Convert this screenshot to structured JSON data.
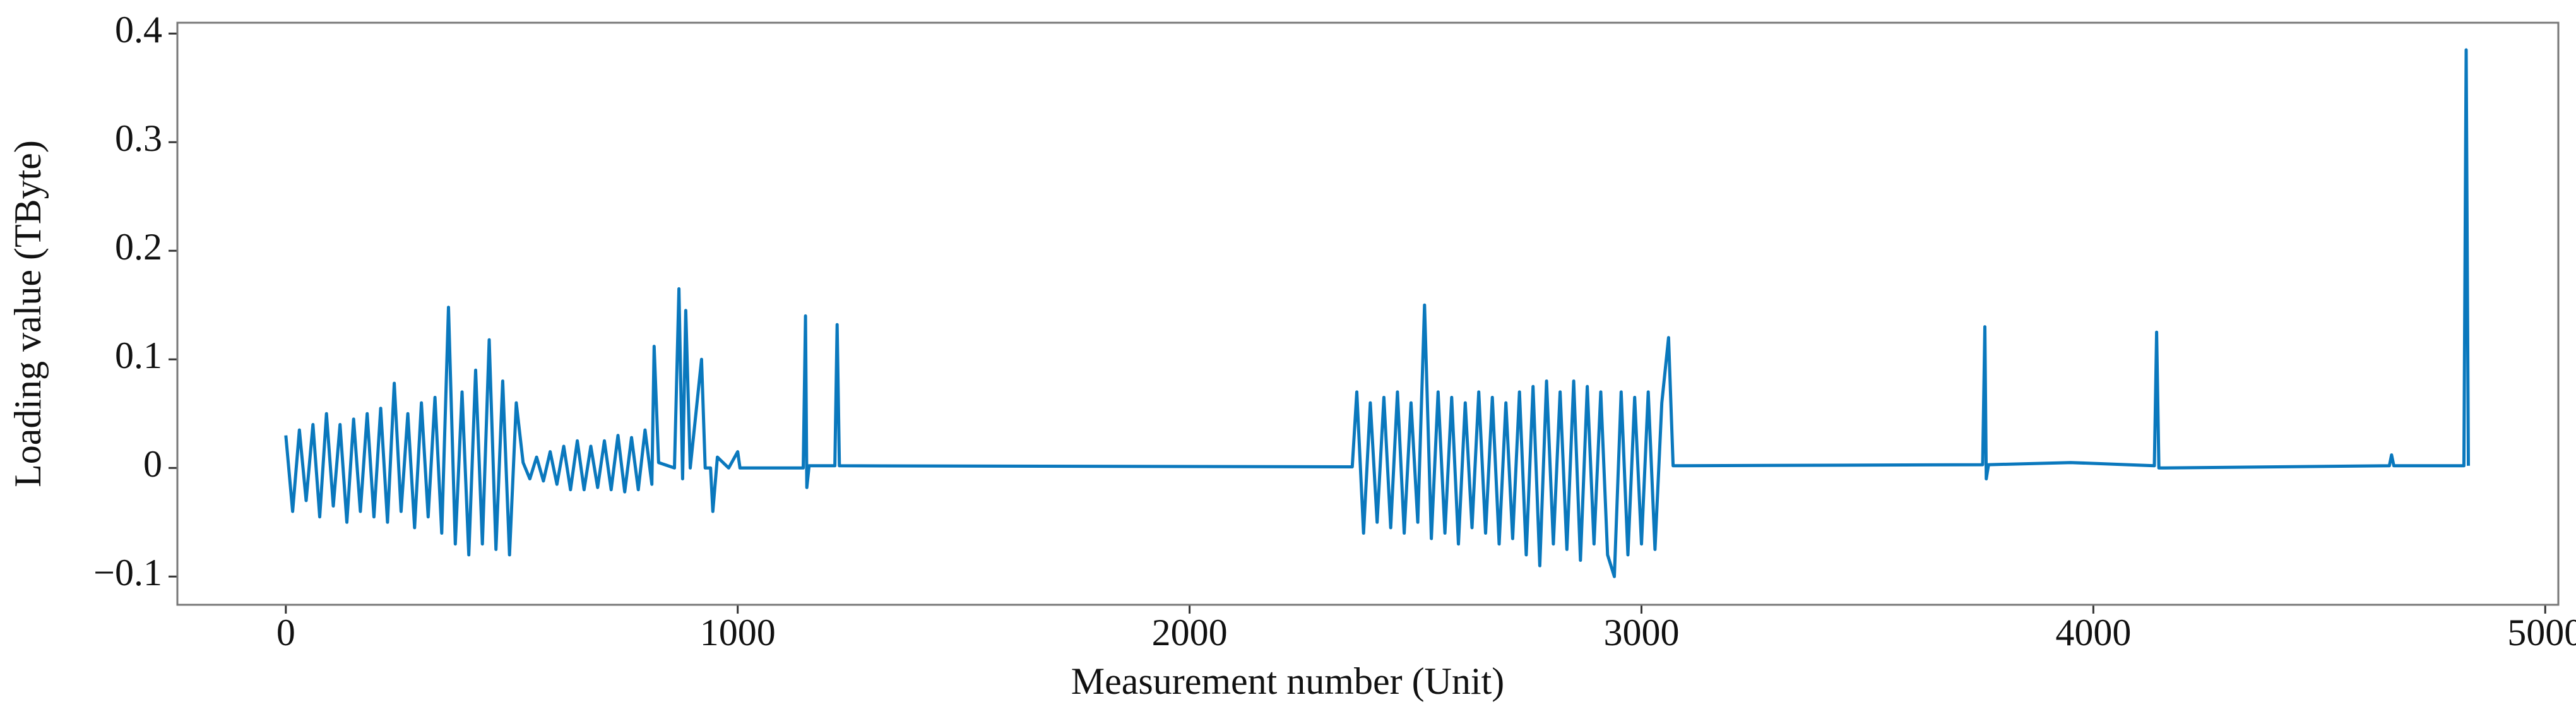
{
  "chart_data": {
    "type": "line",
    "x_label": "Measurement number (Unit)",
    "y_label": "Loading value (TByte)",
    "color": "#0a78bd",
    "xlim": [
      -240,
      5029
    ],
    "ylim": [
      -0.126,
      0.41
    ],
    "xticks": [
      0,
      1000,
      2000,
      3000,
      4000,
      5000
    ],
    "yticks": [
      {
        "value": -0.1,
        "label": "−0.1"
      },
      0,
      0.1,
      0.2,
      0.3,
      0.4
    ],
    "x": [
      0,
      15,
      30,
      45,
      60,
      75,
      90,
      105,
      120,
      135,
      150,
      165,
      180,
      195,
      210,
      225,
      240,
      255,
      270,
      285,
      300,
      315,
      330,
      345,
      360,
      375,
      390,
      405,
      420,
      435,
      450,
      465,
      480,
      495,
      510,
      525,
      540,
      555,
      570,
      585,
      600,
      615,
      630,
      645,
      660,
      675,
      690,
      705,
      720,
      735,
      750,
      765,
      780,
      795,
      810,
      815,
      825,
      860,
      870,
      878,
      885,
      895,
      920,
      928,
      940,
      945,
      955,
      980,
      1000,
      1005,
      1145,
      1150,
      1153,
      1158,
      1215,
      1220,
      1225,
      2360,
      2370,
      2385,
      2400,
      2415,
      2430,
      2445,
      2460,
      2475,
      2490,
      2505,
      2520,
      2535,
      2550,
      2565,
      2580,
      2595,
      2610,
      2625,
      2640,
      2655,
      2670,
      2685,
      2700,
      2715,
      2730,
      2745,
      2760,
      2775,
      2790,
      2805,
      2820,
      2835,
      2850,
      2865,
      2880,
      2895,
      2910,
      2925,
      2940,
      2955,
      2970,
      2985,
      3000,
      3015,
      3030,
      3045,
      3060,
      3070,
      3755,
      3760,
      3763,
      3768,
      3950,
      4135,
      4140,
      4145,
      4655,
      4660,
      4665,
      4820,
      4825,
      4830
    ],
    "values": [
      0.03,
      -0.04,
      0.035,
      -0.03,
      0.04,
      -0.045,
      0.05,
      -0.035,
      0.04,
      -0.05,
      0.045,
      -0.04,
      0.05,
      -0.045,
      0.055,
      -0.05,
      0.078,
      -0.04,
      0.05,
      -0.055,
      0.06,
      -0.045,
      0.065,
      -0.06,
      0.148,
      -0.07,
      0.07,
      -0.08,
      0.09,
      -0.07,
      0.118,
      -0.075,
      0.08,
      -0.08,
      0.06,
      0.005,
      -0.01,
      0.01,
      -0.012,
      0.015,
      -0.015,
      0.02,
      -0.02,
      0.025,
      -0.02,
      0.02,
      -0.018,
      0.025,
      -0.02,
      0.03,
      -0.022,
      0.028,
      -0.02,
      0.035,
      -0.015,
      0.112,
      0.005,
      0,
      0.165,
      -0.01,
      0.145,
      0,
      0.1,
      0,
      0,
      -0.04,
      0.01,
      0,
      0.015,
      0,
      0,
      0.14,
      -0.018,
      0.002,
      0.002,
      0.132,
      0.002,
      0.001,
      0.07,
      -0.06,
      0.06,
      -0.05,
      0.065,
      -0.055,
      0.07,
      -0.06,
      0.06,
      -0.05,
      0.15,
      -0.065,
      0.07,
      -0.06,
      0.065,
      -0.07,
      0.06,
      -0.055,
      0.07,
      -0.06,
      0.065,
      -0.07,
      0.06,
      -0.065,
      0.07,
      -0.08,
      0.075,
      -0.09,
      0.08,
      -0.07,
      0.07,
      -0.075,
      0.08,
      -0.085,
      0.075,
      -0.07,
      0.07,
      -0.08,
      -0.1,
      0.07,
      -0.08,
      0.065,
      -0.07,
      0.07,
      -0.075,
      0.06,
      0.12,
      0.002,
      0.003,
      0.13,
      -0.01,
      0.003,
      0.005,
      0.002,
      0.125,
      0,
      0.002,
      0.012,
      0.002,
      0.002,
      0.385,
      0.002
    ]
  }
}
